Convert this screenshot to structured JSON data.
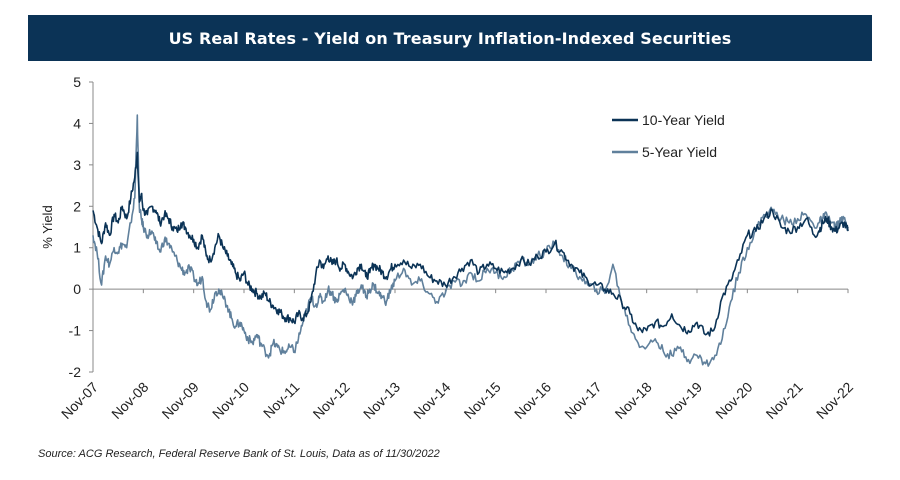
{
  "chart_data": {
    "type": "line",
    "title": "US Real Rates - Yield on Treasury Inflation-Indexed Securities",
    "ylabel": "% Yield",
    "xlabel": "",
    "ylim": [
      -2,
      5
    ],
    "yticks": [
      -2,
      -1,
      0,
      1,
      2,
      3,
      4,
      5
    ],
    "categories": [
      "Nov-07",
      "Nov-08",
      "Nov-09",
      "Nov-10",
      "Nov-11",
      "Nov-12",
      "Nov-13",
      "Nov-14",
      "Nov-15",
      "Nov-16",
      "Nov-17",
      "Nov-18",
      "Nov-19",
      "Nov-20",
      "Nov-21",
      "Nov-22"
    ],
    "legend_position": "top-right",
    "series": [
      {
        "name": "10-Year Yield",
        "color": "#0b3356",
        "x": [
          0,
          0.08,
          0.17,
          0.25,
          0.33,
          0.42,
          0.5,
          0.58,
          0.67,
          0.75,
          0.83,
          0.88,
          0.92,
          0.96,
          1.0,
          1.08,
          1.17,
          1.25,
          1.33,
          1.42,
          1.5,
          1.58,
          1.67,
          1.75,
          1.83,
          1.92,
          2.0,
          2.08,
          2.17,
          2.25,
          2.33,
          2.42,
          2.5,
          2.58,
          2.67,
          2.75,
          2.83,
          2.92,
          3.0,
          3.08,
          3.17,
          3.25,
          3.33,
          3.42,
          3.5,
          3.58,
          3.67,
          3.75,
          3.83,
          3.92,
          4.0,
          4.08,
          4.17,
          4.25,
          4.33,
          4.42,
          4.5,
          4.58,
          4.67,
          4.75,
          4.83,
          4.92,
          5.0,
          5.08,
          5.17,
          5.25,
          5.33,
          5.42,
          5.5,
          5.58,
          5.67,
          5.75,
          5.83,
          5.92,
          6.0,
          6.17,
          6.33,
          6.5,
          6.67,
          6.83,
          7.0,
          7.17,
          7.33,
          7.5,
          7.67,
          7.83,
          8.0,
          8.17,
          8.33,
          8.5,
          8.67,
          8.83,
          9.0,
          9.17,
          9.33,
          9.5,
          9.67,
          9.83,
          10.0,
          10.17,
          10.33,
          10.5,
          10.67,
          10.83,
          11.0,
          11.17,
          11.33,
          11.5,
          11.67,
          11.83,
          12.0,
          12.17,
          12.33,
          12.5,
          12.67,
          12.83,
          13.0,
          13.17,
          13.33,
          13.5,
          13.67,
          13.83,
          14.0,
          14.17,
          14.33,
          14.42,
          14.5,
          14.58,
          14.67,
          14.75,
          14.83,
          14.92,
          15.0
        ],
        "values": [
          1.9,
          1.5,
          1.1,
          1.6,
          1.3,
          1.8,
          1.6,
          2.0,
          1.7,
          2.2,
          2.7,
          3.3,
          2.1,
          2.3,
          1.9,
          1.8,
          2.0,
          1.9,
          1.6,
          1.8,
          1.7,
          1.5,
          1.4,
          1.6,
          1.5,
          1.3,
          1.2,
          1.0,
          1.3,
          0.8,
          0.7,
          1.0,
          1.3,
          1.0,
          0.8,
          0.6,
          0.4,
          0.2,
          0.4,
          0.1,
          0.0,
          -0.1,
          -0.2,
          -0.1,
          -0.3,
          -0.4,
          -0.5,
          -0.6,
          -0.7,
          -0.7,
          -0.8,
          -0.6,
          -0.7,
          -0.6,
          -0.3,
          0.3,
          0.7,
          0.5,
          0.8,
          0.6,
          0.7,
          0.5,
          0.6,
          0.4,
          0.3,
          0.5,
          0.6,
          0.3,
          0.4,
          0.6,
          0.5,
          0.4,
          0.3,
          0.5,
          0.6,
          0.7,
          0.5,
          0.6,
          0.3,
          0.2,
          0.1,
          0.3,
          0.5,
          0.7,
          0.4,
          0.6,
          0.5,
          0.4,
          0.5,
          0.7,
          0.6,
          0.8,
          0.9,
          1.1,
          0.9,
          0.6,
          0.4,
          0.2,
          0.1,
          0.0,
          -0.1,
          -0.3,
          -0.6,
          -1.0,
          -1.0,
          -0.8,
          -0.9,
          -0.6,
          -0.9,
          -1.0,
          -0.8,
          -1.1,
          -1.0,
          -0.2,
          0.2,
          0.7,
          1.3,
          1.4,
          1.7,
          1.9,
          1.5,
          1.4,
          1.5,
          1.7,
          1.3,
          1.4,
          1.6,
          1.7,
          1.5,
          1.4,
          1.5,
          1.6,
          1.4
        ],
        "x_note": "x in years since Nov-07"
      },
      {
        "name": "5-Year Yield",
        "color": "#60809c",
        "x": [
          0,
          0.08,
          0.17,
          0.25,
          0.33,
          0.42,
          0.5,
          0.58,
          0.67,
          0.75,
          0.83,
          0.88,
          0.92,
          0.96,
          1.0,
          1.08,
          1.17,
          1.25,
          1.33,
          1.42,
          1.5,
          1.58,
          1.67,
          1.75,
          1.83,
          1.92,
          2.0,
          2.08,
          2.17,
          2.25,
          2.33,
          2.42,
          2.5,
          2.58,
          2.67,
          2.75,
          2.83,
          2.92,
          3.0,
          3.08,
          3.17,
          3.25,
          3.33,
          3.42,
          3.5,
          3.58,
          3.67,
          3.75,
          3.83,
          3.92,
          4.0,
          4.08,
          4.17,
          4.25,
          4.33,
          4.42,
          4.5,
          4.58,
          4.67,
          4.75,
          4.83,
          4.92,
          5.0,
          5.08,
          5.17,
          5.25,
          5.33,
          5.42,
          5.5,
          5.58,
          5.67,
          5.75,
          5.83,
          5.92,
          6.0,
          6.17,
          6.33,
          6.5,
          6.67,
          6.83,
          7.0,
          7.17,
          7.33,
          7.5,
          7.67,
          7.83,
          8.0,
          8.17,
          8.33,
          8.5,
          8.67,
          8.83,
          9.0,
          9.17,
          9.33,
          9.5,
          9.67,
          9.83,
          10.0,
          10.17,
          10.33,
          10.5,
          10.67,
          10.83,
          11.0,
          11.17,
          11.33,
          11.5,
          11.67,
          11.83,
          12.0,
          12.17,
          12.33,
          12.5,
          12.67,
          12.83,
          13.0,
          13.17,
          13.33,
          13.5,
          13.67,
          13.83,
          14.0,
          14.17,
          14.33,
          14.42,
          14.5,
          14.58,
          14.67,
          14.75,
          14.83,
          14.92,
          15.0
        ],
        "values": [
          1.3,
          0.9,
          0.1,
          0.8,
          0.6,
          1.0,
          0.9,
          1.1,
          1.0,
          1.6,
          2.2,
          4.2,
          2.0,
          1.7,
          1.5,
          1.3,
          1.4,
          1.1,
          0.9,
          1.2,
          1.1,
          0.9,
          0.7,
          0.5,
          0.4,
          0.5,
          0.3,
          0.1,
          0.3,
          -0.3,
          -0.5,
          -0.1,
          0.0,
          -0.2,
          -0.4,
          -0.7,
          -0.9,
          -0.8,
          -1.0,
          -1.2,
          -1.3,
          -1.1,
          -1.3,
          -1.5,
          -1.6,
          -1.3,
          -1.4,
          -1.5,
          -1.5,
          -1.4,
          -1.5,
          -1.2,
          -0.8,
          -0.5,
          -0.2,
          -0.4,
          -0.2,
          -0.3,
          0.0,
          -0.1,
          -0.3,
          -0.1,
          0.0,
          -0.2,
          -0.3,
          -0.1,
          0.1,
          -0.2,
          0.0,
          0.1,
          -0.1,
          -0.2,
          -0.3,
          0.0,
          0.2,
          0.5,
          0.1,
          0.2,
          -0.1,
          -0.3,
          -0.1,
          0.2,
          0.1,
          0.4,
          0.2,
          0.5,
          0.4,
          0.3,
          0.5,
          0.7,
          0.6,
          0.8,
          0.9,
          1.1,
          0.8,
          0.5,
          0.3,
          0.1,
          0.0,
          -0.1,
          0.6,
          -0.3,
          -0.9,
          -1.3,
          -1.4,
          -1.2,
          -1.5,
          -1.6,
          -1.4,
          -1.7,
          -1.6,
          -1.8,
          -1.7,
          -1.2,
          -0.3,
          0.4,
          1.0,
          1.4,
          1.8,
          1.9,
          1.7,
          1.6,
          1.7,
          1.8,
          1.5,
          1.6,
          1.7,
          1.8,
          1.6,
          1.5,
          1.6,
          1.7,
          1.5
        ],
        "x_note": "x in years since Nov-07"
      }
    ]
  },
  "source_text": "Source: ACG Research, Federal Reserve Bank of St. Louis, Data as of 11/30/2022",
  "colors": {
    "header_bg": "#0b3356",
    "ten_year": "#0b3356",
    "five_year": "#60809c"
  }
}
